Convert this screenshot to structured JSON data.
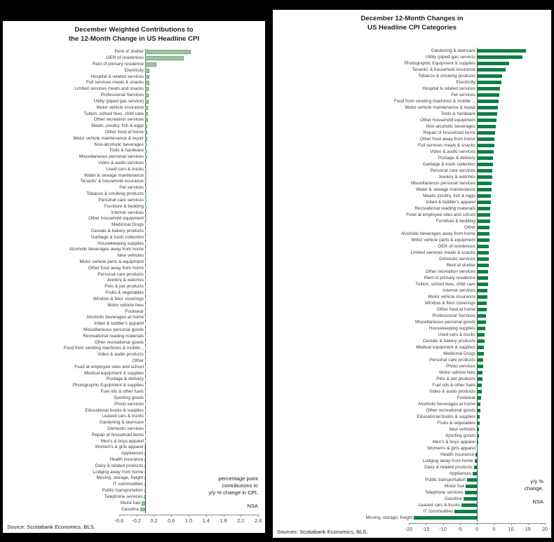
{
  "page": {
    "background_color": "#000000",
    "panel_background": "#ffffff"
  },
  "chart_data": [
    {
      "type": "bar",
      "orientation": "horizontal",
      "title": "December Weighted Contributions to the 12-Month Change in US Headline CPI",
      "title_lines": [
        "December Weighted Contributions to",
        "the 12-Month Change in US Headline CPI"
      ],
      "bar_color": "#9dc3a1",
      "bar_border_color": "#74a47e",
      "xlim": [
        -0.6,
        2.6
      ],
      "xticks": [
        "-0.6",
        "-0.2",
        "0.2",
        "0.6",
        "1.0",
        "1.4",
        "1.8",
        "2.2",
        "2.6"
      ],
      "note_lines": [
        "percentage point",
        "contributions to",
        "y/y % change in CPI,",
        "NSA"
      ],
      "source": "Source: Scotiabank Economics, BLS.",
      "categories": [
        "Rent of shelter",
        "OER of residences",
        "Rent of primary residence",
        "Electricity",
        "Hospital & related services",
        "Full services meals & snacks",
        "Limited services meals and snacks",
        "Professional Services",
        "Utility (piped gas service)",
        "Motor vehicle insurance",
        "Tuition, school fees, child care",
        "Other recreation services",
        "Meats, poultry, fish & eggs",
        "Other food at home",
        "Motor vehicle maintenance & repair",
        "Non-alcoholic beverages",
        "Tools & hardware",
        "Miscellaneous personal services",
        "Video & audio services",
        "Used cars & trucks",
        "Water & sewage maintenance",
        "Tenants' & household insurance",
        "Pet services",
        "Tobacco & smoking products",
        "Personal care services",
        "Furniture & bedding",
        "Internet services",
        "Other household equipment",
        "Medicinal Drugs",
        "Cereals & bakery products",
        "Garbage & trash collection",
        "Housekeeping supplies",
        "Alcoholic beverages away from home",
        "New vehicles",
        "Motor vehicle parts & equipment",
        "Other food away from home",
        "Personal care products",
        "Jewlery & watches",
        "Pets & pet products",
        "Fruits & vegetables",
        "Window & floor coverings",
        "Motor vehicle fees",
        "Footwear",
        "Alcoholic beverages at home",
        "Infant & toddler's apparel",
        "Miscellaneous personal goods",
        "Recreational reading materials",
        "Other recreational goods",
        "Food from vending machines & mobile...",
        "Video & audio products",
        "Other",
        "Food at employee sites and school",
        "Medical equipment & supplies",
        "Postage & delivery",
        "Photographic Equipment & supplies",
        "Fuel oils & other fuels",
        "Sporting goods",
        "Photo services",
        "Educational books & supplies",
        "Leased cars & trucks",
        "Gardening & lawncare",
        "Domestic services",
        "Repair of household items",
        "Men's & boys apparel",
        "Women's & girls apparel",
        "Appliances",
        "Health insurance",
        "Dairy & related products",
        "Lodging away from home",
        "Moving, storage, freight",
        "IT commodities",
        "Public transportation",
        "Telephone services",
        "Motor fuel",
        "Gasoline"
      ],
      "values": [
        1.05,
        0.88,
        0.25,
        0.1,
        0.095,
        0.09,
        0.085,
        0.08,
        0.075,
        0.07,
        0.065,
        0.06,
        0.055,
        0.052,
        0.05,
        0.047,
        0.044,
        0.041,
        0.038,
        0.036,
        0.034,
        0.032,
        0.031,
        0.03,
        0.028,
        0.027,
        0.026,
        0.025,
        0.024,
        0.023,
        0.022,
        0.02,
        0.019,
        0.018,
        0.017,
        0.016,
        0.015,
        0.014,
        0.013,
        0.012,
        0.011,
        0.01,
        0.009,
        0.008,
        0.007,
        0.007,
        0.006,
        0.006,
        0.005,
        0.005,
        0.004,
        0.004,
        0.003,
        0.003,
        0.002,
        0.002,
        0.002,
        0.001,
        0.001,
        0.001,
        0.001,
        0.001,
        0.0005,
        0.0,
        -0.001,
        -0.002,
        -0.003,
        -0.004,
        -0.008,
        -0.012,
        -0.015,
        -0.02,
        -0.025,
        -0.08,
        -0.11
      ]
    },
    {
      "type": "bar",
      "orientation": "horizontal",
      "title": "December 12-Month Changes in US Headline CPI Categories",
      "title_lines": [
        "December 12-Month Changes in",
        "US Headline CPI Categories"
      ],
      "bar_color": "#0e7f45",
      "xlim": [
        -20,
        20
      ],
      "xticks": [
        "-20",
        "-15",
        "-10",
        "-5",
        "0",
        "5",
        "10",
        "15",
        "20"
      ],
      "note_lines": [
        "y/y %",
        "change,",
        "NSA"
      ],
      "source": "Sources: Scotiabank Economics, BLS.",
      "categories": [
        "Gardening & lawncare",
        "Utility (piped gas service)",
        "Photographic Equipment & supplies",
        "Tenants' & household insurance",
        "Tobacco & smoking products",
        "Electricity",
        "Hospital & related services",
        "Pet services",
        "Food from vending machines & mobile ...",
        "Motor vehicle maintenance & repair",
        "Tools & hardware",
        "Other household equipment",
        "Non-alcoholic beverages",
        "Repair of household items",
        "Other food away from home",
        "Full services meals & snacks",
        "Video & audio services",
        "Postage & delivery",
        "Garbage & trash collection",
        "Personal care services",
        "Jewlery & watches",
        "Miscellaneous personal services",
        "Water & sewage maintenance",
        "Meats, poultry, fish & eggs",
        "Infant & toddler's apparel",
        "Recreational reading materials",
        "Food at employee sites and school",
        "Furniture & bedding",
        "Other",
        "Alcoholic beverages away from home",
        "Motor vehicle parts & equipment",
        "OER of residences",
        "Limited services meals & snacks",
        "Domestic services",
        "Rent of shelter",
        "Other recreation services",
        "Rent of primary residence",
        "Tuition, school fees, child care",
        "Internet services",
        "Motor vehicle insurance",
        "Window & floor coverings",
        "Other food at home",
        "Professional Services",
        "Miscellaneous personal goods",
        "Housekeeping supplies",
        "Used cars & trucks",
        "Cereals & bakery products",
        "Medical equipment & supplies",
        "Medicinal Drugs",
        "Personal care products",
        "Photo services",
        "Motor vehicle fees",
        "Pets & pet products",
        "Fuel oils & other fuels",
        "Video & audio products",
        "Footwear",
        "Alcoholic beverages at home",
        "Other recreational goods",
        "Educational books & supplies",
        "Fruits & vegetables",
        "New vehicles",
        "Sporting goods",
        "Men's & boys apparel",
        "Women's & girls apparel",
        "Health insurance",
        "Lodging away from home",
        "Dairy & related products",
        "Appliances",
        "Public transportation",
        "Motor fuel",
        "Telephone services",
        "Gasoline",
        "Leased cars & trucks",
        "IT commodities",
        "Moving, storage, freight"
      ],
      "values": [
        14.5,
        13.5,
        9.5,
        8.5,
        7.5,
        7.2,
        6.9,
        6.6,
        6.3,
        6.1,
        5.9,
        5.7,
        5.5,
        5.3,
        5.2,
        5.1,
        5.0,
        4.8,
        4.7,
        4.6,
        4.5,
        4.4,
        4.3,
        4.2,
        4.1,
        4.0,
        3.9,
        3.85,
        3.8,
        3.75,
        3.7,
        3.6,
        3.55,
        3.5,
        3.45,
        3.4,
        3.3,
        3.2,
        3.1,
        3.0,
        2.9,
        2.8,
        2.7,
        2.6,
        2.5,
        2.3,
        2.2,
        2.1,
        2.0,
        1.9,
        1.8,
        1.7,
        1.6,
        1.5,
        1.4,
        1.2,
        1.1,
        1.0,
        0.9,
        0.8,
        0.7,
        0.6,
        0.5,
        0.3,
        -0.4,
        -0.7,
        -0.9,
        -1.2,
        -2.8,
        -3.2,
        -3.6,
        -3.9,
        -4.5,
        -6.5,
        -18.5
      ]
    }
  ]
}
